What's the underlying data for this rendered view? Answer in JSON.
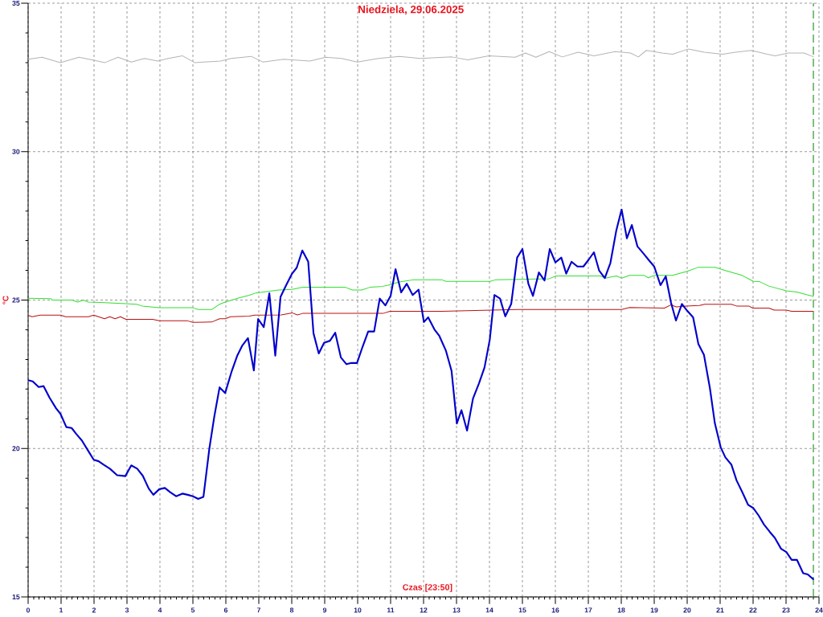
{
  "chart_data": {
    "type": "line",
    "title": "Niedziela, 29.06.2025",
    "xlabel": "Czas [23:50]",
    "ylabel": "°C",
    "xlim": [
      0,
      24
    ],
    "ylim": [
      15,
      35
    ],
    "xticks": [
      0,
      {
        "value": 0.17,
        "label": null
      },
      {
        "value": 0.33,
        "label": null
      },
      {
        "value": 0.5,
        "label": null
      },
      {
        "value": 0.67,
        "label": null
      },
      {
        "value": 0.83,
        "label": null
      },
      1,
      {
        "value": 1.17,
        "label": null
      },
      {
        "value": 1.33,
        "label": null
      },
      {
        "value": 1.5,
        "label": null
      },
      {
        "value": 1.67,
        "label": null
      },
      {
        "value": 1.83,
        "label": null
      },
      2,
      {
        "value": 2.17,
        "label": null
      },
      {
        "value": 2.33,
        "label": null
      },
      {
        "value": 2.5,
        "label": null
      },
      {
        "value": 2.67,
        "label": null
      },
      {
        "value": 2.83,
        "label": null
      },
      3,
      {
        "value": 3.17,
        "label": null
      },
      {
        "value": 3.33,
        "label": null
      },
      {
        "value": 3.5,
        "label": null
      },
      {
        "value": 3.67,
        "label": null
      },
      {
        "value": 3.83,
        "label": null
      },
      4,
      {
        "value": 4.17,
        "label": null
      },
      {
        "value": 4.33,
        "label": null
      },
      {
        "value": 4.5,
        "label": null
      },
      {
        "value": 4.67,
        "label": null
      },
      {
        "value": 4.83,
        "label": null
      },
      5,
      {
        "value": 5.17,
        "label": null
      },
      {
        "value": 5.33,
        "label": null
      },
      {
        "value": 5.5,
        "label": null
      },
      {
        "value": 5.67,
        "label": null
      },
      {
        "value": 5.83,
        "label": null
      },
      6,
      {
        "value": 6.17,
        "label": null
      },
      {
        "value": 6.33,
        "label": null
      },
      {
        "value": 6.5,
        "label": null
      },
      {
        "value": 6.67,
        "label": null
      },
      {
        "value": 6.83,
        "label": null
      },
      7,
      {
        "value": 7.17,
        "label": null
      },
      {
        "value": 7.33,
        "label": null
      },
      {
        "value": 7.5,
        "label": null
      },
      {
        "value": 7.67,
        "label": null
      },
      {
        "value": 7.83,
        "label": null
      },
      8,
      {
        "value": 8.17,
        "label": null
      },
      {
        "value": 8.33,
        "label": null
      },
      {
        "value": 8.5,
        "label": null
      },
      {
        "value": 8.67,
        "label": null
      },
      {
        "value": 8.83,
        "label": null
      },
      9,
      {
        "value": 9.17,
        "label": null
      },
      {
        "value": 9.33,
        "label": null
      },
      {
        "value": 9.5,
        "label": null
      },
      {
        "value": 9.67,
        "label": null
      },
      {
        "value": 9.83,
        "label": null
      },
      10,
      {
        "value": 10.17,
        "label": null
      },
      {
        "value": 10.33,
        "label": null
      },
      {
        "value": 10.5,
        "label": null
      },
      {
        "value": 10.67,
        "label": null
      },
      {
        "value": 10.83,
        "label": null
      },
      11,
      {
        "value": 11.17,
        "label": null
      },
      {
        "value": 11.33,
        "label": null
      },
      {
        "value": 11.5,
        "label": null
      },
      {
        "value": 11.67,
        "label": null
      },
      {
        "value": 11.83,
        "label": null
      },
      12,
      {
        "value": 12.17,
        "label": null
      },
      {
        "value": 12.33,
        "label": null
      },
      {
        "value": 12.5,
        "label": null
      },
      {
        "value": 12.67,
        "label": null
      },
      {
        "value": 12.83,
        "label": null
      },
      13,
      {
        "value": 13.17,
        "label": null
      },
      {
        "value": 13.33,
        "label": null
      },
      {
        "value": 13.5,
        "label": null
      },
      {
        "value": 13.67,
        "label": null
      },
      {
        "value": 13.83,
        "label": null
      },
      14,
      {
        "value": 14.17,
        "label": null
      },
      {
        "value": 14.33,
        "label": null
      },
      {
        "value": 14.5,
        "label": null
      },
      {
        "value": 14.67,
        "label": null
      },
      {
        "value": 14.83,
        "label": null
      },
      15,
      {
        "value": 15.17,
        "label": null
      },
      {
        "value": 15.33,
        "label": null
      },
      {
        "value": 15.5,
        "label": null
      },
      {
        "value": 15.67,
        "label": null
      },
      {
        "value": 15.83,
        "label": null
      },
      16,
      {
        "value": 16.17,
        "label": null
      },
      {
        "value": 16.33,
        "label": null
      },
      {
        "value": 16.5,
        "label": null
      },
      {
        "value": 16.67,
        "label": null
      },
      {
        "value": 16.83,
        "label": null
      },
      17,
      {
        "value": 17.17,
        "label": null
      },
      {
        "value": 17.33,
        "label": null
      },
      {
        "value": 17.5,
        "label": null
      },
      {
        "value": 17.67,
        "label": null
      },
      {
        "value": 17.83,
        "label": null
      },
      18,
      {
        "value": 18.17,
        "label": null
      },
      {
        "value": 18.33,
        "label": null
      },
      {
        "value": 18.5,
        "label": null
      },
      {
        "value": 18.67,
        "label": null
      },
      {
        "value": 18.83,
        "label": null
      },
      19,
      {
        "value": 19.17,
        "label": null
      },
      {
        "value": 19.33,
        "label": null
      },
      {
        "value": 19.5,
        "label": null
      },
      {
        "value": 19.67,
        "label": null
      },
      {
        "value": 19.83,
        "label": null
      },
      20,
      {
        "value": 20.17,
        "label": null
      },
      {
        "value": 20.33,
        "label": null
      },
      {
        "value": 20.5,
        "label": null
      },
      {
        "value": 20.67,
        "label": null
      },
      {
        "value": 20.83,
        "label": null
      },
      21,
      {
        "value": 21.17,
        "label": null
      },
      {
        "value": 21.33,
        "label": null
      },
      {
        "value": 21.5,
        "label": null
      },
      {
        "value": 21.67,
        "label": null
      },
      {
        "value": 21.83,
        "label": null
      },
      22,
      {
        "value": 22.17,
        "label": null
      },
      {
        "value": 22.33,
        "label": null
      },
      {
        "value": 22.5,
        "label": null
      },
      {
        "value": 22.67,
        "label": null
      },
      {
        "value": 22.83,
        "label": null
      },
      23,
      {
        "value": 23.17,
        "label": null
      },
      {
        "value": 23.33,
        "label": null
      },
      {
        "value": 23.5,
        "label": null
      },
      {
        "value": 23.67,
        "label": null
      },
      {
        "value": 23.83,
        "label": null
      },
      24
    ],
    "yticks": [
      15,
      {
        "value": 16,
        "label": null
      },
      {
        "value": 17,
        "label": null
      },
      {
        "value": 18,
        "label": null
      },
      {
        "value": 19,
        "label": null
      },
      20,
      {
        "value": 21,
        "label": null
      },
      {
        "value": 22,
        "label": null
      },
      {
        "value": 23,
        "label": null
      },
      {
        "value": 24,
        "label": null
      },
      25,
      {
        "value": 26,
        "label": null
      },
      {
        "value": 27,
        "label": null
      },
      {
        "value": 28,
        "label": null
      },
      {
        "value": 29,
        "label": null
      },
      30,
      {
        "value": 31,
        "label": null
      },
      {
        "value": 32,
        "label": null
      },
      {
        "value": 33,
        "label": null
      },
      {
        "value": 34,
        "label": null
      },
      35
    ],
    "grid": true,
    "marker": "none",
    "line_style": "solid",
    "series": [
      {
        "color": "#0000cc",
        "x": [
          0,
          0.14,
          0.32,
          0.47,
          0.65,
          0.85,
          0.98,
          1.16,
          1.32,
          1.46,
          1.63,
          1.83,
          1.99,
          2.14,
          2.28,
          2.48,
          2.7,
          2.95,
          3.13,
          3.31,
          3.48,
          3.66,
          3.8,
          3.98,
          4.15,
          4.31,
          4.49,
          4.68,
          4.84,
          5.0,
          5.16,
          5.32,
          5.5,
          5.65,
          5.81,
          5.98,
          6.18,
          6.34,
          6.5,
          6.67,
          6.85,
          6.98,
          7.15,
          7.32,
          7.5,
          7.66,
          7.83,
          8.01,
          8.15,
          8.32,
          8.5,
          8.66,
          8.82,
          8.98,
          9.16,
          9.32,
          9.49,
          9.66,
          9.81,
          9.98,
          10.15,
          10.32,
          10.5,
          10.67,
          10.84,
          11.0,
          11.15,
          11.32,
          11.49,
          11.67,
          11.85,
          12.01,
          12.14,
          12.33,
          12.48,
          12.68,
          12.85,
          13.01,
          13.15,
          13.32,
          13.5,
          13.68,
          13.85,
          14.01,
          14.15,
          14.32,
          14.48,
          14.66,
          14.84,
          15.0,
          15.18,
          15.32,
          15.5,
          15.67,
          15.83,
          16.0,
          16.18,
          16.33,
          16.49,
          16.67,
          16.85,
          17.01,
          17.17,
          17.33,
          17.5,
          17.67,
          17.85,
          18.01,
          18.17,
          18.32,
          18.49,
          18.68,
          18.84,
          19.0,
          19.19,
          19.35,
          19.51,
          19.66,
          19.84,
          20.0,
          20.18,
          20.34,
          20.51,
          20.69,
          20.84,
          21.02,
          21.16,
          21.34,
          21.5,
          21.68,
          21.85,
          22.01,
          22.17,
          22.33,
          22.5,
          22.66,
          22.85,
          23.01,
          23.17,
          23.33,
          23.52,
          23.66,
          23.84
        ],
        "values": [
          22.3,
          22.26,
          22.07,
          22.1,
          21.71,
          21.35,
          21.17,
          20.72,
          20.69,
          20.49,
          20.27,
          19.91,
          19.62,
          19.57,
          19.46,
          19.32,
          19.1,
          19.07,
          19.43,
          19.32,
          19.08,
          18.65,
          18.44,
          18.63,
          18.67,
          18.53,
          18.39,
          18.48,
          18.44,
          18.39,
          18.3,
          18.37,
          20.0,
          21.08,
          22.06,
          21.87,
          22.61,
          23.11,
          23.47,
          23.72,
          22.63,
          24.36,
          24.09,
          25.23,
          23.13,
          25.11,
          25.5,
          25.89,
          26.09,
          26.67,
          26.29,
          23.88,
          23.2,
          23.56,
          23.63,
          23.9,
          23.07,
          22.84,
          22.88,
          22.88,
          23.43,
          23.94,
          23.94,
          25.05,
          24.82,
          25.14,
          26.04,
          25.26,
          25.55,
          25.17,
          25.35,
          24.26,
          24.42,
          24.01,
          23.79,
          23.29,
          22.61,
          20.84,
          21.29,
          20.6,
          21.68,
          22.19,
          22.73,
          23.67,
          25.17,
          25.05,
          24.45,
          24.87,
          26.43,
          26.72,
          25.55,
          25.14,
          25.93,
          25.66,
          26.72,
          26.27,
          26.43,
          25.89,
          26.29,
          26.13,
          26.13,
          26.36,
          26.61,
          25.99,
          25.74,
          26.25,
          27.35,
          28.05,
          27.08,
          27.53,
          26.81,
          26.56,
          26.34,
          26.13,
          25.5,
          25.8,
          24.91,
          24.31,
          24.87,
          24.64,
          24.42,
          23.52,
          23.15,
          22.03,
          20.85,
          20.03,
          19.7,
          19.46,
          18.92,
          18.51,
          18.1,
          17.99,
          17.74,
          17.44,
          17.2,
          16.99,
          16.62,
          16.51,
          16.25,
          16.25,
          15.8,
          15.76,
          15.58
        ]
      },
      {
        "color": "#33dd33",
        "x": [
          0,
          0.69,
          0.73,
          1.34,
          1.5,
          1.67,
          1.83,
          2.2,
          2.97,
          3.29,
          3.46,
          3.98,
          5.0,
          5.16,
          5.57,
          5.81,
          5.98,
          6.38,
          6.71,
          6.91,
          7.28,
          7.6,
          8.01,
          8.33,
          9.63,
          9.84,
          10.12,
          10.37,
          10.69,
          10.93,
          11.26,
          11.67,
          12.56,
          12.68,
          14.02,
          14.17,
          15.81,
          16.02,
          17.36,
          17.52,
          17.85,
          18.01,
          18.25,
          18.7,
          18.82,
          19.01,
          19.55,
          20.0,
          20.32,
          20.85,
          21.18,
          21.67,
          22.01,
          22.2,
          22.48,
          23.01,
          23.33,
          23.62,
          23.84
        ],
        "values": [
          25.06,
          25.05,
          25.0,
          25.0,
          24.93,
          25.0,
          24.93,
          24.92,
          24.88,
          24.86,
          24.8,
          24.74,
          24.74,
          24.68,
          24.68,
          24.86,
          24.93,
          25.07,
          25.16,
          25.24,
          25.29,
          25.34,
          25.36,
          25.43,
          25.43,
          25.34,
          25.34,
          25.43,
          25.45,
          25.5,
          25.61,
          25.68,
          25.68,
          25.63,
          25.63,
          25.68,
          25.72,
          25.81,
          25.81,
          25.74,
          25.81,
          25.74,
          25.83,
          25.83,
          25.75,
          25.83,
          25.83,
          25.97,
          26.1,
          26.1,
          25.99,
          25.83,
          25.63,
          25.62,
          25.47,
          25.31,
          25.27,
          25.18,
          25.12
        ]
      },
      {
        "color": "#bb1111",
        "x": [
          0,
          0.12,
          0.37,
          0.98,
          1.14,
          1.83,
          1.99,
          2.32,
          2.48,
          2.64,
          2.8,
          2.97,
          3.78,
          3.98,
          4.84,
          5.0,
          5.57,
          5.81,
          5.98,
          6.14,
          6.71,
          6.87,
          7.68,
          8.01,
          8.17,
          8.33,
          10.77,
          10.98,
          12.54,
          14.84,
          18.01,
          18.25,
          19.31,
          19.51,
          19.67,
          19.96,
          20.37,
          20.53,
          21.34,
          21.5,
          21.87,
          21.99,
          22.48,
          22.64,
          23.01,
          23.17,
          23.84
        ],
        "values": [
          24.49,
          24.44,
          24.49,
          24.49,
          24.44,
          24.44,
          24.49,
          24.37,
          24.44,
          24.37,
          24.44,
          24.35,
          24.35,
          24.3,
          24.3,
          24.25,
          24.26,
          24.37,
          24.37,
          24.44,
          24.46,
          24.49,
          24.5,
          24.57,
          24.5,
          24.55,
          24.55,
          24.62,
          24.62,
          24.68,
          24.68,
          24.75,
          24.73,
          24.84,
          24.77,
          24.8,
          24.82,
          24.86,
          24.86,
          24.8,
          24.8,
          24.73,
          24.73,
          24.66,
          24.66,
          24.62,
          24.62
        ]
      },
      {
        "color": "#b4b4b4",
        "x": [
          0,
          0.42,
          0.98,
          1.54,
          1.94,
          2.33,
          2.73,
          3.13,
          3.53,
          3.93,
          4.25,
          4.68,
          5.05,
          5.84,
          6.16,
          6.77,
          7.12,
          7.76,
          8.55,
          9.03,
          9.51,
          9.99,
          10.63,
          11.27,
          11.9,
          12.86,
          13.34,
          13.98,
          14.78,
          15.09,
          15.41,
          15.81,
          16.21,
          16.69,
          17.17,
          17.81,
          18.28,
          18.52,
          18.76,
          19.24,
          19.56,
          20.04,
          20.52,
          21.07,
          21.47,
          21.95,
          22.43,
          22.67,
          23.07,
          23.55,
          23.84
        ],
        "values": [
          33.11,
          33.18,
          33.0,
          33.18,
          33.09,
          33.0,
          33.18,
          33.02,
          33.14,
          33.05,
          33.14,
          33.23,
          33.0,
          33.05,
          33.14,
          33.21,
          33.02,
          33.11,
          33.05,
          33.18,
          33.14,
          33.02,
          33.14,
          33.21,
          33.14,
          33.19,
          33.09,
          33.23,
          33.18,
          33.32,
          33.18,
          33.37,
          33.19,
          33.35,
          33.23,
          33.37,
          33.32,
          33.19,
          33.41,
          33.32,
          33.28,
          33.46,
          33.35,
          33.28,
          33.35,
          33.41,
          33.28,
          33.23,
          33.32,
          33.32,
          33.19
        ]
      }
    ],
    "ref_lines": [
      {
        "axis": "x",
        "value": 23.83,
        "color": "#008000",
        "line_style": "dashed"
      }
    ]
  }
}
